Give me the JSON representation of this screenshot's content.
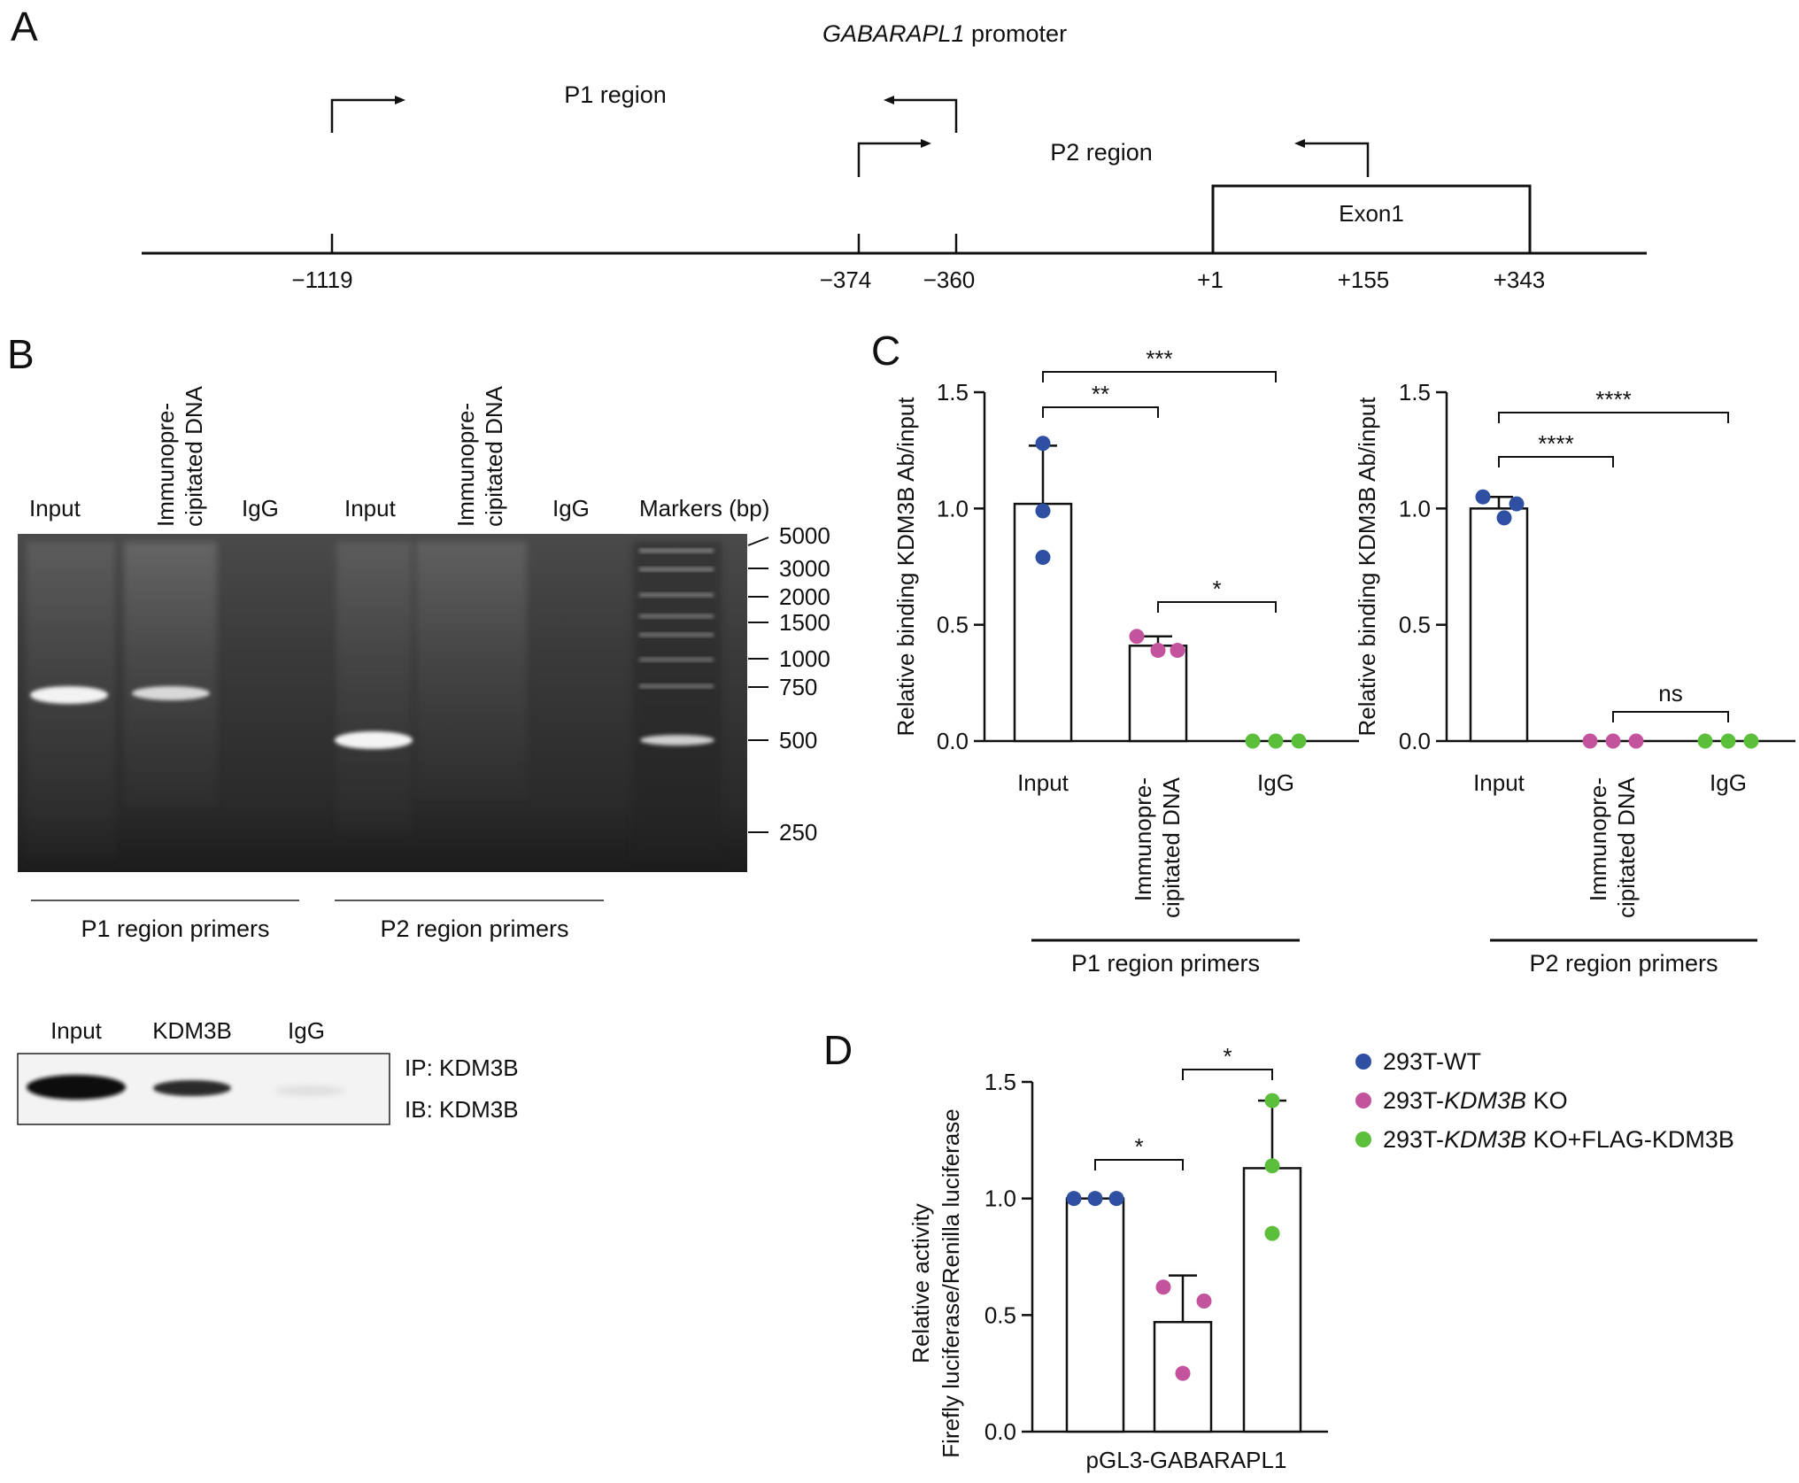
{
  "panels": {
    "A": {
      "letter": "A",
      "title_italic": "GABARAPL1",
      "title_rest": " promoter",
      "p1_label": "P1 region",
      "p2_label": "P2 region",
      "exon_label": "Exon1",
      "positions": [
        "−1119",
        "−374",
        "−360",
        "+1",
        "+155",
        "+343"
      ]
    },
    "B": {
      "letter": "B",
      "gel_lanes": {
        "input1": "Input",
        "ip1_line1": "Immunopre-",
        "ip1_line2": "cipitated DNA",
        "igg1": "IgG",
        "input2": "Input",
        "ip2_line1": "Immunopre-",
        "ip2_line2": "cipitated DNA",
        "igg2": "IgG",
        "markers": "Markers (bp)"
      },
      "marker_sizes": [
        "5000",
        "3000",
        "2000",
        "1500",
        "1000",
        "750",
        "500",
        "250"
      ],
      "group_labels": [
        "P1 region primers",
        "P2 region primers"
      ],
      "blot_lanes": [
        "Input",
        "KDM3B",
        "IgG"
      ],
      "blot_ip": "IP: KDM3B",
      "blot_ib": "IB: KDM3B"
    },
    "C": {
      "letter": "C"
    },
    "D": {
      "letter": "D"
    }
  },
  "chart_data": [
    {
      "id": "C-P1",
      "type": "bar",
      "ylabel": "Relative binding KDM3B Ab/input",
      "ylim": [
        0,
        1.5
      ],
      "yticks": [
        "0.0",
        "0.5",
        "1.0",
        "1.5"
      ],
      "categories": [
        "Input",
        "Immunopre-\ncipitated DNA",
        "IgG"
      ],
      "values": [
        1.02,
        0.41,
        0.0
      ],
      "error": [
        0.25,
        0.04,
        0
      ],
      "points": [
        [
          1.28,
          0.99,
          0.79
        ],
        [
          0.45,
          0.39,
          0.39
        ],
        [
          0.0,
          0.0,
          0.0
        ]
      ],
      "point_colors": [
        "#2f4fa2",
        "#c4539d",
        "#5bbf3c"
      ],
      "group_label": "P1 region primers",
      "significance": [
        {
          "from": 0,
          "to": 1,
          "label": "**"
        },
        {
          "from": 0,
          "to": 2,
          "label": "***"
        },
        {
          "from": 1,
          "to": 2,
          "label": "*"
        }
      ]
    },
    {
      "id": "C-P2",
      "type": "bar",
      "ylabel": "Relative binding KDM3B Ab/input",
      "ylim": [
        0,
        1.5
      ],
      "yticks": [
        "0.0",
        "0.5",
        "1.0",
        "1.5"
      ],
      "categories": [
        "Input",
        "Immunopre-\ncipitated DNA",
        "IgG"
      ],
      "values": [
        1.0,
        0.0,
        0.0
      ],
      "error": [
        0.05,
        0,
        0
      ],
      "points": [
        [
          1.05,
          0.96,
          1.02
        ],
        [
          0.0,
          0.0,
          0.0
        ],
        [
          0.0,
          0.0,
          0.0
        ]
      ],
      "point_colors": [
        "#2f4fa2",
        "#c4539d",
        "#5bbf3c"
      ],
      "group_label": "P2 region primers",
      "significance": [
        {
          "from": 0,
          "to": 1,
          "label": "****"
        },
        {
          "from": 0,
          "to": 2,
          "label": "****"
        },
        {
          "from": 1,
          "to": 2,
          "label": "ns"
        }
      ]
    },
    {
      "id": "D",
      "type": "bar",
      "ylabel_line1": "Relative activity",
      "ylabel_line2": "Firefly luciferase/Renilla luciferase",
      "ylim": [
        0,
        1.5
      ],
      "yticks": [
        "0.0",
        "0.5",
        "1.0",
        "1.5"
      ],
      "xlabel": "pGL3-GABARAPL1",
      "values": [
        1.0,
        0.47,
        1.13
      ],
      "error": [
        0,
        0.2,
        0.29
      ],
      "points": [
        [
          1.0,
          1.0,
          1.0
        ],
        [
          0.62,
          0.56,
          0.25
        ],
        [
          1.42,
          1.14,
          0.85
        ]
      ],
      "point_colors": [
        "#2f4fa2",
        "#c4539d",
        "#5bbf3c"
      ],
      "legend": [
        {
          "pre": "293T-WT",
          "italic": "",
          "post": ""
        },
        {
          "pre": "293T-",
          "italic": "KDM3B",
          "post": " KO"
        },
        {
          "pre": "293T-",
          "italic": "KDM3B",
          "post": " KO+FLAG-KDM3B"
        }
      ],
      "significance": [
        {
          "from": 0,
          "to": 1,
          "label": "*"
        },
        {
          "from": 1,
          "to": 2,
          "label": "*"
        }
      ]
    }
  ]
}
